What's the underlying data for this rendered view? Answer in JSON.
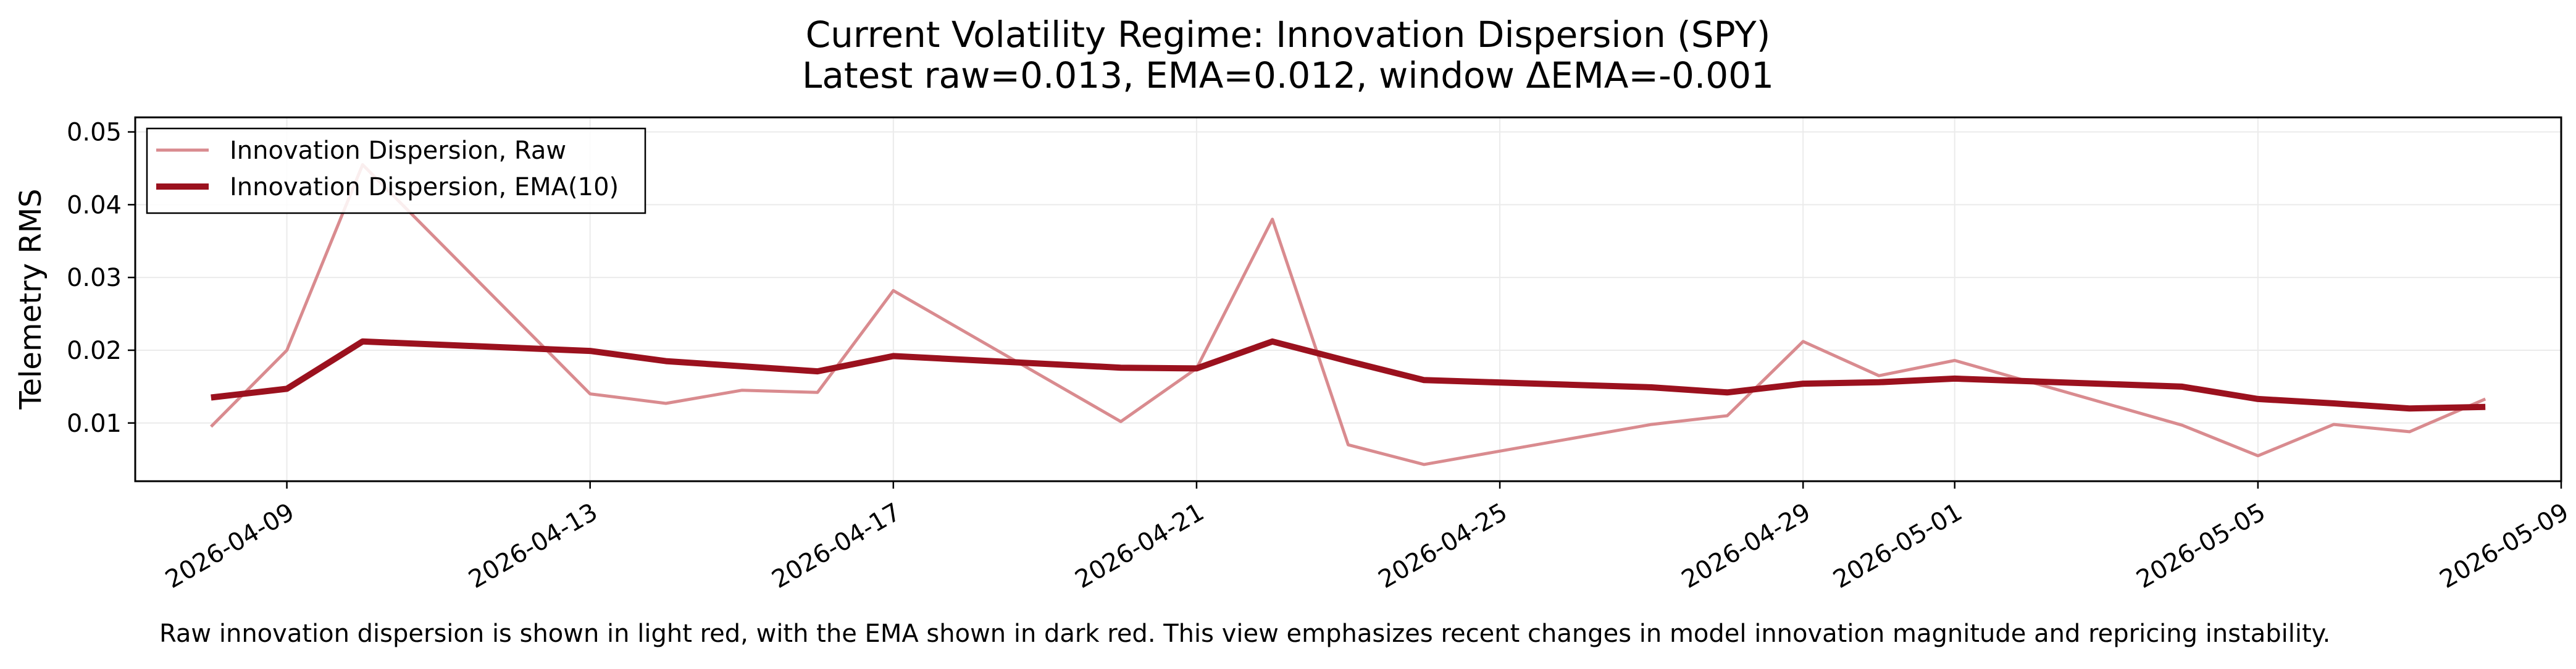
{
  "chart_data": {
    "type": "line",
    "title": "Current Volatility Regime: Innovation Dispersion (SPY)",
    "subtitle": "Latest raw=0.013, EMA=0.012, window ΔEMA=-0.001",
    "xlabel": "",
    "ylabel": "Telemetry RMS",
    "x_type": "date",
    "xlim": [
      "2026-04-07",
      "2026-05-09"
    ],
    "ylim": [
      0.002,
      0.052
    ],
    "x_ticks": [
      "2026-04-09",
      "2026-04-13",
      "2026-04-17",
      "2026-04-21",
      "2026-04-25",
      "2026-04-29",
      "2026-05-01",
      "2026-05-05",
      "2026-05-09"
    ],
    "y_ticks": [
      0.01,
      0.02,
      0.03,
      0.04,
      0.05
    ],
    "y_tick_labels": [
      "0.01",
      "0.02",
      "0.03",
      "0.04",
      "0.05"
    ],
    "grid": true,
    "legend_position": "top-left",
    "series": [
      {
        "name": "Innovation Dispersion, Raw",
        "color": "#d98b8f",
        "x": [
          "2026-04-08",
          "2026-04-09",
          "2026-04-10",
          "2026-04-13",
          "2026-04-14",
          "2026-04-15",
          "2026-04-16",
          "2026-04-17",
          "2026-04-20",
          "2026-04-21",
          "2026-04-22",
          "2026-04-23",
          "2026-04-24",
          "2026-04-27",
          "2026-04-28",
          "2026-04-29",
          "2026-04-30",
          "2026-05-01",
          "2026-05-04",
          "2026-05-05",
          "2026-05-06",
          "2026-05-07",
          "2026-05-08"
        ],
        "values": [
          0.0095,
          0.02,
          0.0455,
          0.014,
          0.0127,
          0.0145,
          0.0142,
          0.0282,
          0.0102,
          0.0175,
          0.038,
          0.007,
          0.0043,
          0.0098,
          0.011,
          0.0212,
          0.0165,
          0.0186,
          0.0097,
          0.0055,
          0.0098,
          0.0088,
          0.0133
        ]
      },
      {
        "name": "Innovation Dispersion, EMA(10)",
        "color": "#9b111e",
        "x": [
          "2026-04-08",
          "2026-04-09",
          "2026-04-10",
          "2026-04-13",
          "2026-04-14",
          "2026-04-15",
          "2026-04-16",
          "2026-04-17",
          "2026-04-20",
          "2026-04-21",
          "2026-04-22",
          "2026-04-23",
          "2026-04-24",
          "2026-04-27",
          "2026-04-28",
          "2026-04-29",
          "2026-04-30",
          "2026-05-01",
          "2026-05-04",
          "2026-05-05",
          "2026-05-06",
          "2026-05-07",
          "2026-05-08"
        ],
        "values": [
          0.0135,
          0.0147,
          0.0212,
          0.0199,
          0.0185,
          0.0178,
          0.0171,
          0.0192,
          0.0176,
          0.0175,
          0.0212,
          0.0185,
          0.0159,
          0.0149,
          0.0142,
          0.0154,
          0.0156,
          0.0161,
          0.015,
          0.0133,
          0.0127,
          0.012,
          0.0122
        ]
      }
    ]
  },
  "caption": "Raw innovation dispersion is shown in light red, with the EMA shown in dark red. This view emphasizes recent changes in model innovation magnitude and repricing instability."
}
